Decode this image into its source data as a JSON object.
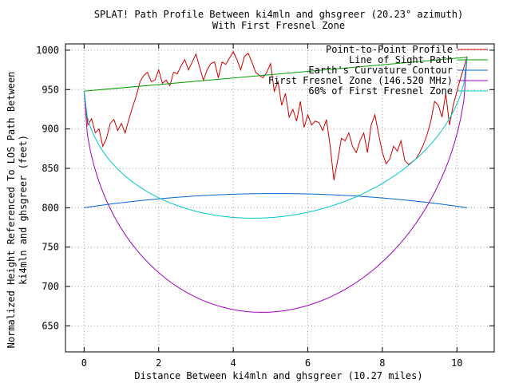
{
  "chart_data": {
    "type": "line",
    "title": "SPLAT! Path Profile Between ki4mln and ghsgreer (20.23° azimuth)",
    "subtitle": "With First Fresnel Zone",
    "xlabel": "Distance Between ki4mln and ghsgreer (10.27 miles)",
    "ylabel_line1": "Normalized Height Referenced To LOS Path Between",
    "ylabel_line2": "ki4mln and ghsgreer (feet)",
    "xlim": [
      -0.5,
      11.0
    ],
    "ylim": [
      617,
      1008
    ],
    "x_ticks": [
      0,
      2,
      4,
      6,
      8,
      10
    ],
    "y_ticks": [
      650,
      700,
      750,
      800,
      850,
      900,
      950,
      1000
    ],
    "grid": true,
    "legend_position": "top-right",
    "path_length": 10.27,
    "series": [
      {
        "name": "Point-to-Point Profile",
        "color": "#cc0000",
        "x": [
          0,
          0.1,
          0.2,
          0.3,
          0.4,
          0.5,
          0.6,
          0.7,
          0.8,
          0.9,
          1.0,
          1.1,
          1.2,
          1.3,
          1.4,
          1.5,
          1.6,
          1.7,
          1.8,
          1.9,
          2.0,
          2.1,
          2.2,
          2.3,
          2.4,
          2.5,
          2.6,
          2.7,
          2.8,
          2.9,
          3.0,
          3.1,
          3.2,
          3.3,
          3.4,
          3.5,
          3.6,
          3.7,
          3.8,
          3.9,
          4.0,
          4.1,
          4.2,
          4.3,
          4.4,
          4.5,
          4.6,
          4.7,
          4.8,
          4.9,
          5.0,
          5.1,
          5.2,
          5.3,
          5.4,
          5.5,
          5.6,
          5.7,
          5.8,
          5.9,
          6.0,
          6.1,
          6.2,
          6.3,
          6.4,
          6.5,
          6.6,
          6.7,
          6.8,
          6.9,
          7.0,
          7.1,
          7.2,
          7.3,
          7.4,
          7.5,
          7.6,
          7.7,
          7.8,
          7.9,
          8.0,
          8.1,
          8.2,
          8.3,
          8.4,
          8.5,
          8.6,
          8.7,
          8.8,
          8.9,
          9.0,
          9.1,
          9.2,
          9.3,
          9.4,
          9.5,
          9.6,
          9.7,
          9.8,
          9.9,
          10.0,
          10.1,
          10.2,
          10.27
        ],
        "values": [
          948,
          905,
          913,
          895,
          900,
          878,
          888,
          907,
          912,
          898,
          907,
          895,
          912,
          928,
          942,
          960,
          968,
          972,
          960,
          962,
          975,
          958,
          962,
          955,
          972,
          970,
          980,
          988,
          975,
          985,
          995,
          978,
          962,
          975,
          983,
          985,
          965,
          985,
          982,
          990,
          998,
          988,
          975,
          992,
          996,
          985,
          972,
          968,
          965,
          972,
          983,
          948,
          960,
          930,
          945,
          915,
          925,
          910,
          935,
          902,
          918,
          905,
          910,
          908,
          898,
          912,
          878,
          835,
          860,
          888,
          885,
          895,
          878,
          870,
          885,
          895,
          870,
          905,
          918,
          893,
          870,
          856,
          862,
          878,
          872,
          885,
          860,
          855,
          858,
          862,
          870,
          880,
          893,
          910,
          935,
          930,
          915,
          945,
          905,
          930,
          948,
          965,
          980,
          992
        ]
      },
      {
        "name": "Line of Sight Path",
        "color": "#00a000",
        "x": [
          0,
          10.27
        ],
        "values": [
          948,
          991
        ]
      },
      {
        "name": "Earth's Curvature Contour",
        "color": "#0066cc",
        "curve": "parabola",
        "x_range": [
          0,
          10.27
        ],
        "endpoints": 800,
        "peak": 818
      },
      {
        "name": "First Fresnel Zone (146.520 MHz)",
        "color": "#a000c0",
        "curve": "fresnel",
        "x_range": [
          0,
          10.27
        ],
        "endpoints": [
          948,
          991
        ],
        "minimum": 668
      },
      {
        "name": "60% of First Fresnel Zone",
        "color": "#00c8c8",
        "curve": "fresnel",
        "x_range": [
          0,
          10.27
        ],
        "endpoints": [
          948,
          991
        ],
        "minimum": 788
      }
    ]
  }
}
